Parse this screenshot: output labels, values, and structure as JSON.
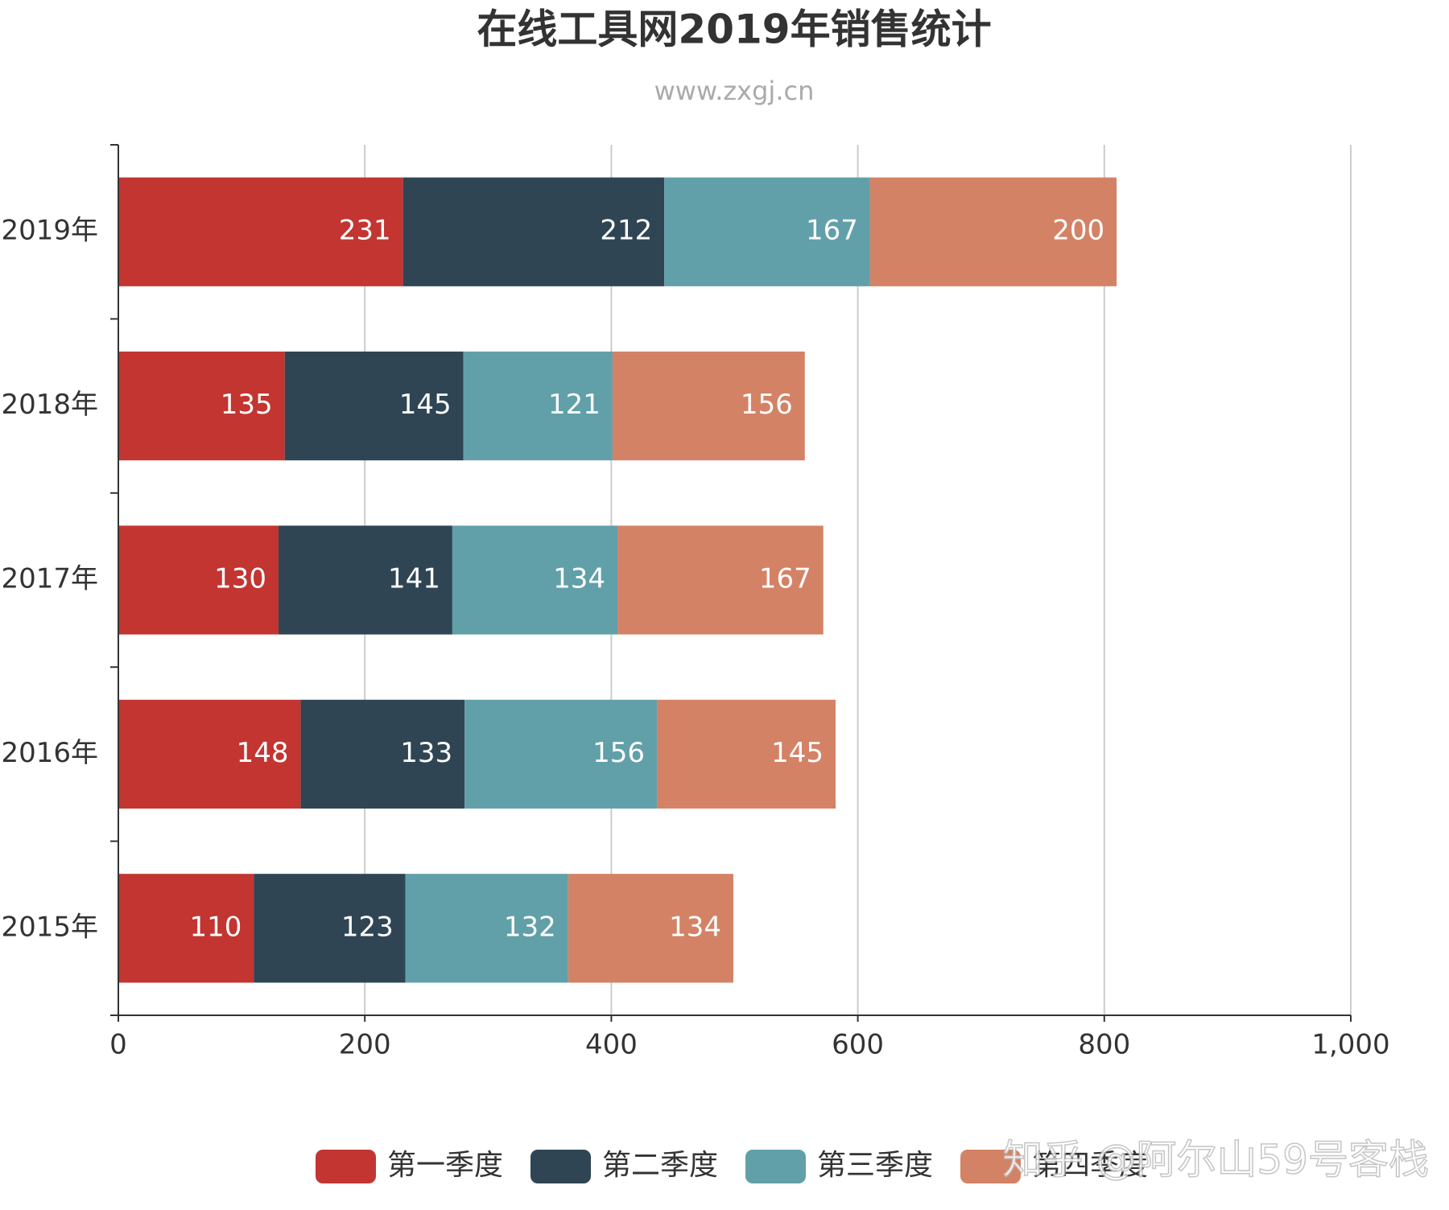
{
  "chart_data": {
    "type": "stacked-bar-horizontal",
    "title": "在线工具网2019年销售统计",
    "subtitle": "www.zxgj.cn",
    "categories": [
      "2019年",
      "2018年",
      "2017年",
      "2016年",
      "2015年"
    ],
    "series": [
      {
        "name": "第一季度",
        "color": "#c23531",
        "values": [
          231,
          135,
          130,
          148,
          110
        ]
      },
      {
        "name": "第二季度",
        "color": "#2f4554",
        "values": [
          212,
          145,
          141,
          133,
          123
        ]
      },
      {
        "name": "第三季度",
        "color": "#61a0a8",
        "values": [
          167,
          121,
          134,
          156,
          132
        ]
      },
      {
        "name": "第四季度",
        "color": "#d48265",
        "values": [
          200,
          156,
          167,
          145,
          134
        ]
      }
    ],
    "xlim": [
      0,
      1000
    ],
    "xticks": [
      0,
      200,
      400,
      600,
      800,
      {
        "value": 1000,
        "label": "1,000"
      }
    ],
    "grid": true,
    "legend": "bottom",
    "watermark": "知乎 @阿尔山59号客栈"
  }
}
